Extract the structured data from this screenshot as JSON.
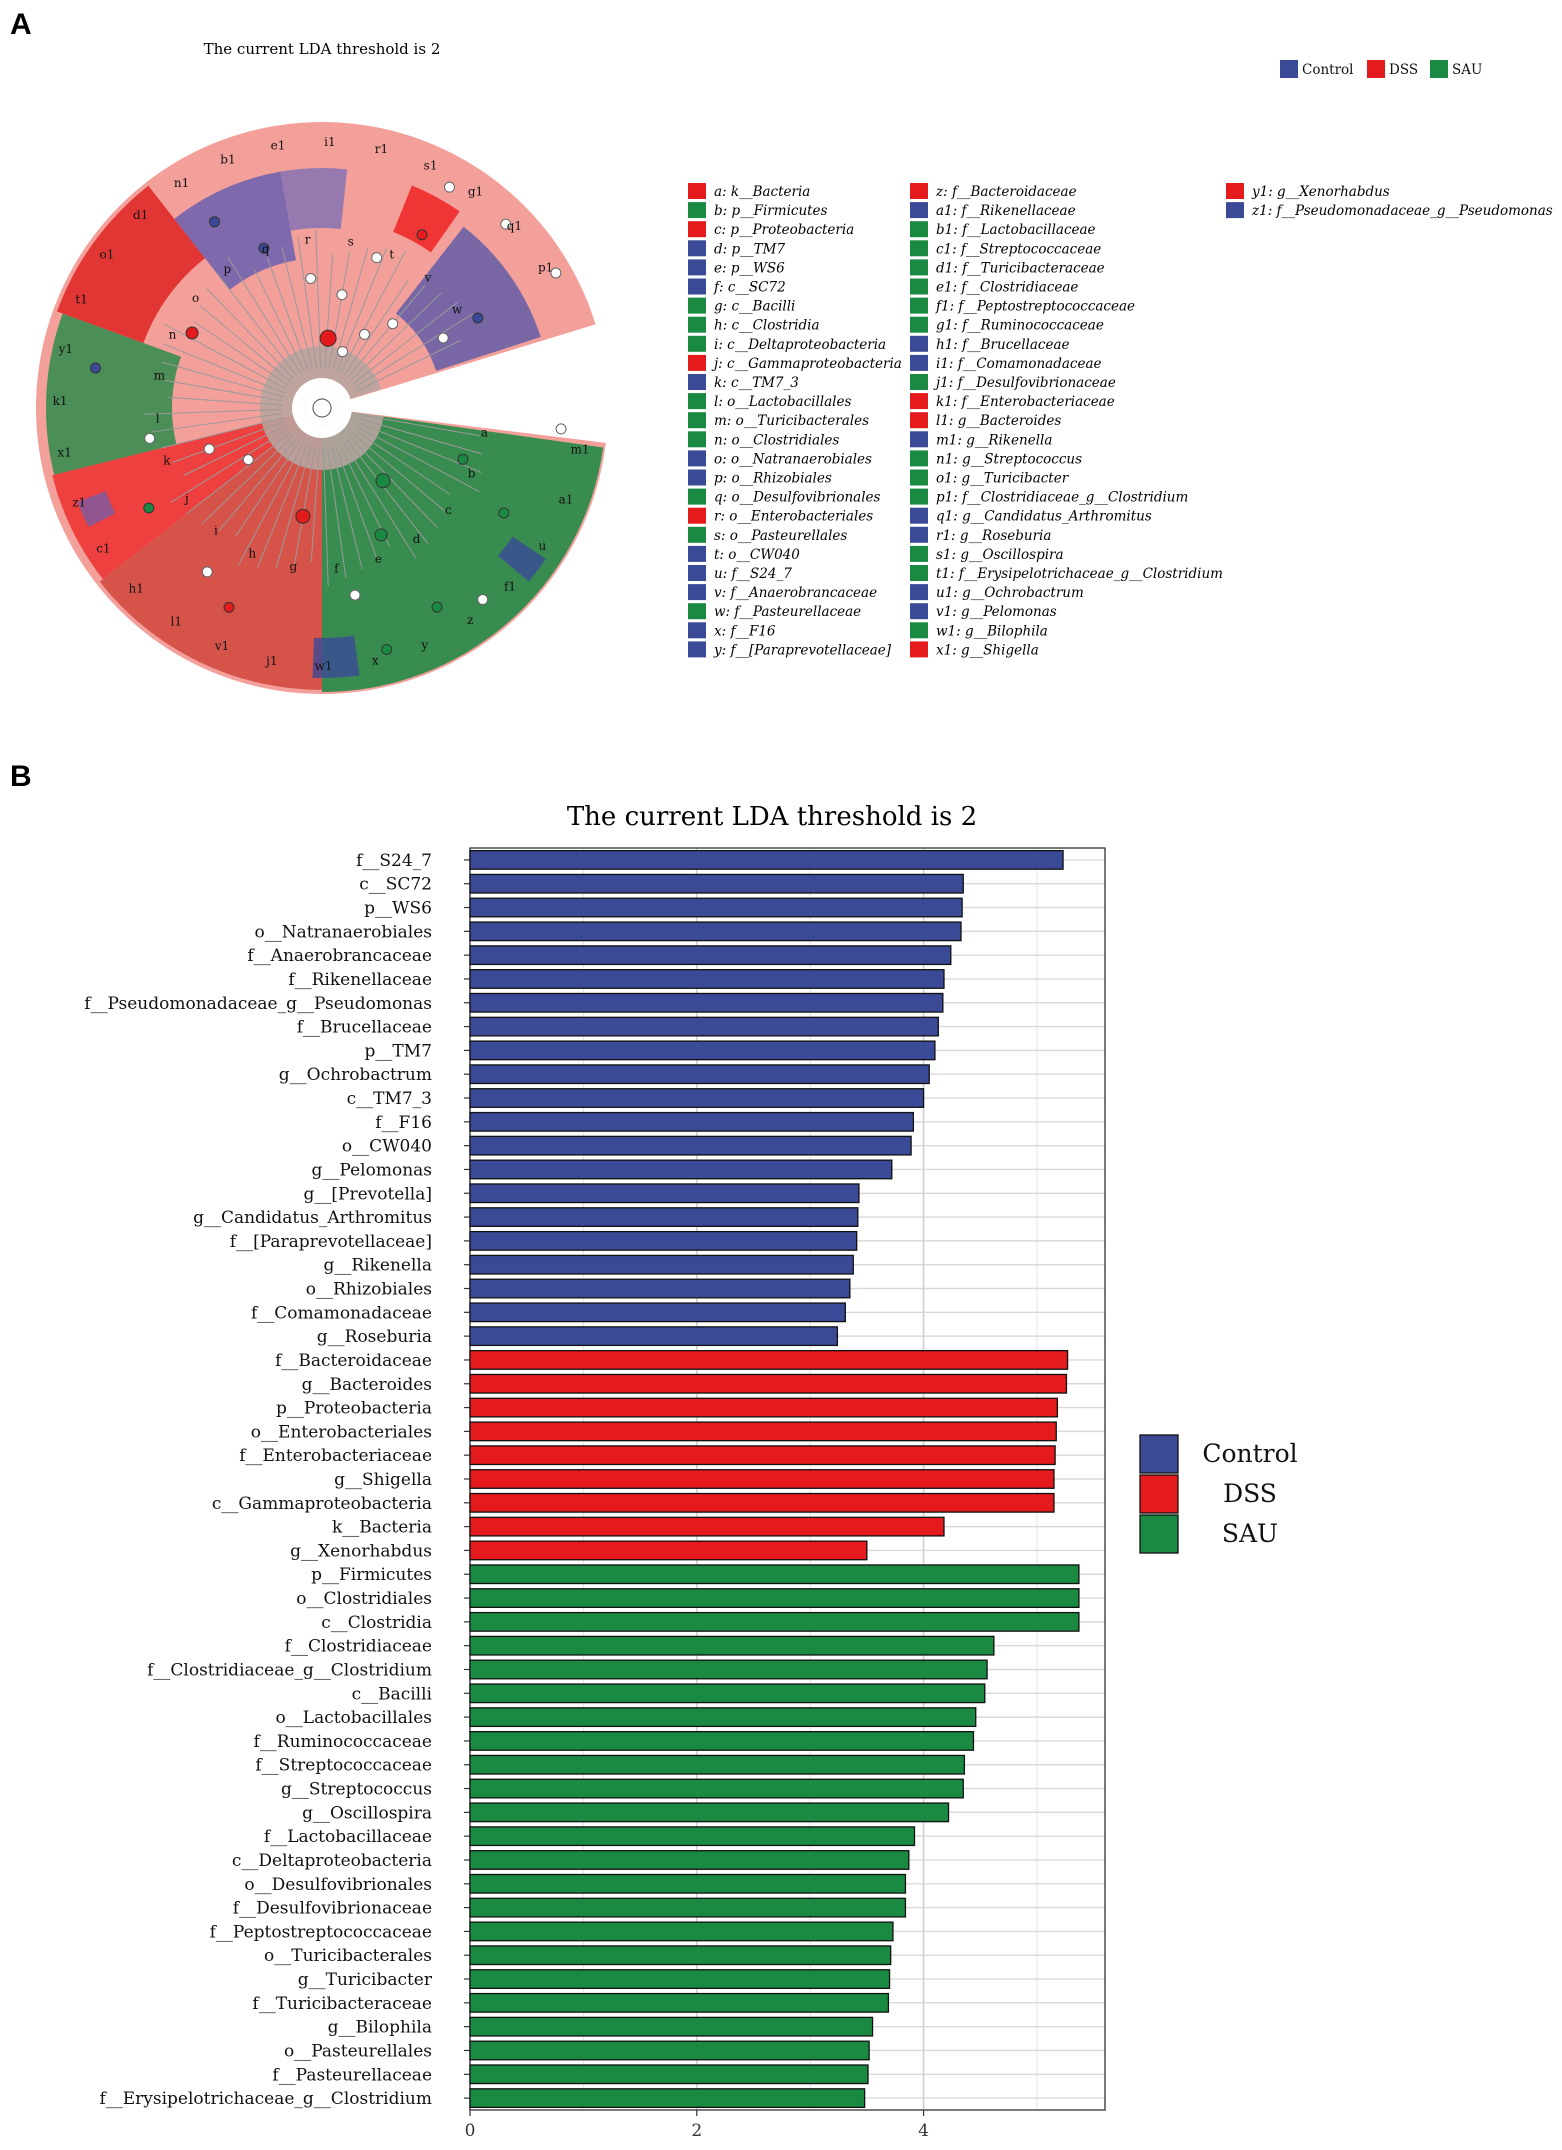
{
  "panel_a": {
    "letter": "A",
    "title": "The current LDA threshold is 2",
    "group_legend": [
      {
        "name": "Control",
        "color": "#3b4a97"
      },
      {
        "name": "DSS",
        "color": "#e41a1c"
      },
      {
        "name": "SAU",
        "color": "#1a8a43"
      }
    ],
    "cladogram_outer_labels": [
      "m1",
      "a1",
      "u",
      "f1",
      "z",
      "y",
      "x",
      "w1",
      "j1",
      "v1",
      "l1",
      "h1",
      "c1",
      "z1",
      "x1",
      "k1",
      "y1",
      "t1",
      "o1",
      "d1",
      "n1",
      "b1",
      "e1",
      "i1",
      "r1",
      "s1",
      "g1",
      "q1",
      "p1"
    ],
    "cladogram_inner_labels": [
      "a",
      "b",
      "c",
      "d",
      "e",
      "f",
      "g",
      "h",
      "i",
      "j",
      "k",
      "l",
      "m",
      "n",
      "o",
      "p",
      "q",
      "r",
      "s",
      "t",
      "v",
      "w"
    ],
    "key": [
      [
        {
          "label": "a: k__Bacteria",
          "group": "DSS"
        },
        {
          "label": "b: p__Firmicutes",
          "group": "SAU"
        },
        {
          "label": "c: p__Proteobacteria",
          "group": "DSS"
        },
        {
          "label": "d: p__TM7",
          "group": "Control"
        },
        {
          "label": "e: p__WS6",
          "group": "Control"
        },
        {
          "label": "f: c__SC72",
          "group": "Control"
        },
        {
          "label": "g: c__Bacilli",
          "group": "SAU"
        },
        {
          "label": "h: c__Clostridia",
          "group": "SAU"
        },
        {
          "label": "i: c__Deltaproteobacteria",
          "group": "SAU"
        },
        {
          "label": "j: c__Gammaproteobacteria",
          "group": "DSS"
        },
        {
          "label": "k: c__TM7_3",
          "group": "Control"
        },
        {
          "label": "l: o__Lactobacillales",
          "group": "SAU"
        },
        {
          "label": "m: o__Turicibacterales",
          "group": "SAU"
        },
        {
          "label": "n: o__Clostridiales",
          "group": "SAU"
        },
        {
          "label": "o: o__Natranaerobiales",
          "group": "Control"
        },
        {
          "label": "p: o__Rhizobiales",
          "group": "Control"
        },
        {
          "label": "q: o__Desulfovibrionales",
          "group": "SAU"
        },
        {
          "label": "r: o__Enterobacteriales",
          "group": "DSS"
        },
        {
          "label": "s: o__Pasteurellales",
          "group": "SAU"
        },
        {
          "label": "t: o__CW040",
          "group": "Control"
        },
        {
          "label": "u: f__S24_7",
          "group": "Control"
        },
        {
          "label": "v: f__Anaerobrancaceae",
          "group": "Control"
        },
        {
          "label": "w: f__Pasteurellaceae",
          "group": "SAU"
        },
        {
          "label": "x: f__F16",
          "group": "Control"
        },
        {
          "label": "y: f__[Paraprevotellaceae]",
          "group": "Control"
        }
      ],
      [
        {
          "label": "z: f__Bacteroidaceae",
          "group": "DSS"
        },
        {
          "label": "a1: f__Rikenellaceae",
          "group": "Control"
        },
        {
          "label": "b1: f__Lactobacillaceae",
          "group": "SAU"
        },
        {
          "label": "c1: f__Streptococcaceae",
          "group": "SAU"
        },
        {
          "label": "d1: f__Turicibacteraceae",
          "group": "SAU"
        },
        {
          "label": "e1: f__Clostridiaceae",
          "group": "SAU"
        },
        {
          "label": "f1: f__Peptostreptococcaceae",
          "group": "SAU"
        },
        {
          "label": "g1: f__Ruminococcaceae",
          "group": "SAU"
        },
        {
          "label": "h1: f__Brucellaceae",
          "group": "Control"
        },
        {
          "label": "i1: f__Comamonadaceae",
          "group": "Control"
        },
        {
          "label": "j1: f__Desulfovibrionaceae",
          "group": "SAU"
        },
        {
          "label": "k1: f__Enterobacteriaceae",
          "group": "DSS"
        },
        {
          "label": "l1: g__Bacteroides",
          "group": "DSS"
        },
        {
          "label": "m1: g__Rikenella",
          "group": "Control"
        },
        {
          "label": "n1: g__Streptococcus",
          "group": "SAU"
        },
        {
          "label": "o1: g__Turicibacter",
          "group": "SAU"
        },
        {
          "label": "p1: f__Clostridiaceae_g__Clostridium",
          "group": "SAU"
        },
        {
          "label": "q1: g__Candidatus_Arthromitus",
          "group": "Control"
        },
        {
          "label": "r1: g__Roseburia",
          "group": "Control"
        },
        {
          "label": "s1: g__Oscillospira",
          "group": "SAU"
        },
        {
          "label": "t1: f__Erysipelotrichaceae_g__Clostridium",
          "group": "SAU"
        },
        {
          "label": "u1: g__Ochrobactrum",
          "group": "Control"
        },
        {
          "label": "v1: g__Pelomonas",
          "group": "Control"
        },
        {
          "label": "w1: g__Bilophila",
          "group": "SAU"
        },
        {
          "label": "x1: g__Shigella",
          "group": "DSS"
        }
      ],
      [
        {
          "label": "y1: g__Xenorhabdus",
          "group": "DSS"
        },
        {
          "label": "z1: f__Pseudomonadaceae_g__Pseudomonas",
          "group": "Control"
        }
      ]
    ]
  },
  "panel_b": {
    "letter": "B"
  },
  "chart_data": {
    "type": "bar",
    "orientation": "horizontal",
    "title": "The current LDA threshold is 2",
    "xlabel": "",
    "ylabel": "",
    "xlim": [
      0,
      5.6
    ],
    "x_ticks": [
      0,
      2,
      4
    ],
    "grid": true,
    "legend_position": "right",
    "legend": [
      {
        "name": "Control",
        "color": "#3b4a97"
      },
      {
        "name": "DSS",
        "color": "#e41a1c"
      },
      {
        "name": "SAU",
        "color": "#1a8a43"
      }
    ],
    "bars": [
      {
        "label": "f__S24_7",
        "value": 5.23,
        "group": "Control"
      },
      {
        "label": "c__SC72",
        "value": 4.35,
        "group": "Control"
      },
      {
        "label": "p__WS6",
        "value": 4.34,
        "group": "Control"
      },
      {
        "label": "o__Natranaerobiales",
        "value": 4.33,
        "group": "Control"
      },
      {
        "label": "f__Anaerobrancaceae",
        "value": 4.24,
        "group": "Control"
      },
      {
        "label": "f__Rikenellaceae",
        "value": 4.18,
        "group": "Control"
      },
      {
        "label": "f__Pseudomonadaceae_g__Pseudomonas",
        "value": 4.17,
        "group": "Control"
      },
      {
        "label": "f__Brucellaceae",
        "value": 4.13,
        "group": "Control"
      },
      {
        "label": "p__TM7",
        "value": 4.1,
        "group": "Control"
      },
      {
        "label": "g__Ochrobactrum",
        "value": 4.05,
        "group": "Control"
      },
      {
        "label": "c__TM7_3",
        "value": 4.0,
        "group": "Control"
      },
      {
        "label": "f__F16",
        "value": 3.91,
        "group": "Control"
      },
      {
        "label": "o__CW040",
        "value": 3.89,
        "group": "Control"
      },
      {
        "label": "g__Pelomonas",
        "value": 3.72,
        "group": "Control"
      },
      {
        "label": "g__[Prevotella]",
        "value": 3.43,
        "group": "Control"
      },
      {
        "label": "g__Candidatus_Arthromitus",
        "value": 3.42,
        "group": "Control"
      },
      {
        "label": "f__[Paraprevotellaceae]",
        "value": 3.41,
        "group": "Control"
      },
      {
        "label": "g__Rikenella",
        "value": 3.38,
        "group": "Control"
      },
      {
        "label": "o__Rhizobiales",
        "value": 3.35,
        "group": "Control"
      },
      {
        "label": "f__Comamonadaceae",
        "value": 3.31,
        "group": "Control"
      },
      {
        "label": "g__Roseburia",
        "value": 3.24,
        "group": "Control"
      },
      {
        "label": "f__Bacteroidaceae",
        "value": 5.27,
        "group": "DSS"
      },
      {
        "label": "g__Bacteroides",
        "value": 5.26,
        "group": "DSS"
      },
      {
        "label": "p__Proteobacteria",
        "value": 5.18,
        "group": "DSS"
      },
      {
        "label": "o__Enterobacteriales",
        "value": 5.17,
        "group": "DSS"
      },
      {
        "label": "f__Enterobacteriaceae",
        "value": 5.16,
        "group": "DSS"
      },
      {
        "label": "g__Shigella",
        "value": 5.15,
        "group": "DSS"
      },
      {
        "label": "c__Gammaproteobacteria",
        "value": 5.15,
        "group": "DSS"
      },
      {
        "label": "k__Bacteria",
        "value": 4.18,
        "group": "DSS"
      },
      {
        "label": "g__Xenorhabdus",
        "value": 3.5,
        "group": "DSS"
      },
      {
        "label": "p__Firmicutes",
        "value": 5.37,
        "group": "SAU"
      },
      {
        "label": "o__Clostridiales",
        "value": 5.37,
        "group": "SAU"
      },
      {
        "label": "c__Clostridia",
        "value": 5.37,
        "group": "SAU"
      },
      {
        "label": "f__Clostridiaceae",
        "value": 4.62,
        "group": "SAU"
      },
      {
        "label": "f__Clostridiaceae_g__Clostridium",
        "value": 4.56,
        "group": "SAU"
      },
      {
        "label": "c__Bacilli",
        "value": 4.54,
        "group": "SAU"
      },
      {
        "label": "o__Lactobacillales",
        "value": 4.46,
        "group": "SAU"
      },
      {
        "label": "f__Ruminococcaceae",
        "value": 4.44,
        "group": "SAU"
      },
      {
        "label": "f__Streptococcaceae",
        "value": 4.36,
        "group": "SAU"
      },
      {
        "label": "g__Streptococcus",
        "value": 4.35,
        "group": "SAU"
      },
      {
        "label": "g__Oscillospira",
        "value": 4.22,
        "group": "SAU"
      },
      {
        "label": "f__Lactobacillaceae",
        "value": 3.92,
        "group": "SAU"
      },
      {
        "label": "c__Deltaproteobacteria",
        "value": 3.87,
        "group": "SAU"
      },
      {
        "label": "o__Desulfovibrionales",
        "value": 3.84,
        "group": "SAU"
      },
      {
        "label": "f__Desulfovibrionaceae",
        "value": 3.84,
        "group": "SAU"
      },
      {
        "label": "f__Peptostreptococcaceae",
        "value": 3.73,
        "group": "SAU"
      },
      {
        "label": "o__Turicibacterales",
        "value": 3.71,
        "group": "SAU"
      },
      {
        "label": "g__Turicibacter",
        "value": 3.7,
        "group": "SAU"
      },
      {
        "label": "f__Turicibacteraceae",
        "value": 3.69,
        "group": "SAU"
      },
      {
        "label": "g__Bilophila",
        "value": 3.55,
        "group": "SAU"
      },
      {
        "label": "o__Pasteurellales",
        "value": 3.52,
        "group": "SAU"
      },
      {
        "label": "f__Pasteurellaceae",
        "value": 3.51,
        "group": "SAU"
      },
      {
        "label": "f__Erysipelotrichaceae_g__Clostridium",
        "value": 3.48,
        "group": "SAU"
      }
    ]
  }
}
